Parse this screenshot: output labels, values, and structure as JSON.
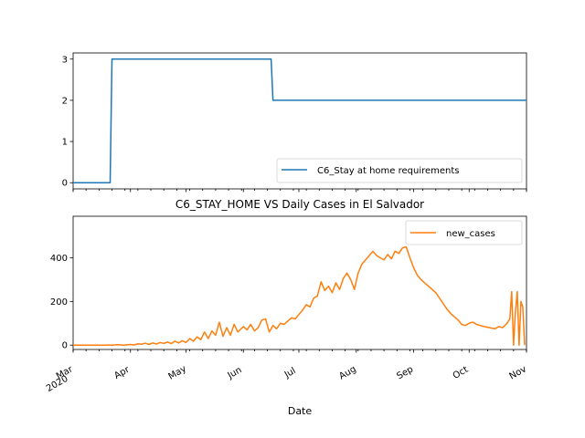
{
  "chart_data": [
    {
      "type": "line",
      "title": "",
      "xlabel": "",
      "ylabel": "",
      "x_range": [
        "2020-03-01",
        "2020-11-01"
      ],
      "ylim": [
        -0.15,
        3.15
      ],
      "yticks": [
        "0",
        "1",
        "2",
        "3"
      ],
      "x_tick_labels_shown": false,
      "legend_position": "lower-right",
      "grid": false,
      "series": [
        {
          "name": "C6_Stay at home requirements",
          "color": "#1f77b4",
          "points": [
            [
              "2020-03-01",
              0
            ],
            [
              "2020-03-21",
              0
            ],
            [
              "2020-03-22",
              3
            ],
            [
              "2020-06-16",
              3
            ],
            [
              "2020-06-17",
              2
            ],
            [
              "2020-11-01",
              2
            ]
          ]
        }
      ]
    },
    {
      "type": "line",
      "title": "C6_STAY_HOME VS Daily Cases in El Salvador",
      "xlabel": "Date",
      "ylabel": "",
      "x_range": [
        "2020-03-01",
        "2020-11-01"
      ],
      "ylim": [
        -20,
        590
      ],
      "yticks": [
        "0",
        "200",
        "400"
      ],
      "x_tick_labels": [
        {
          "date": "2020-03-01",
          "label": "Mar\n2020"
        },
        {
          "date": "2020-04-01",
          "label": "Apr"
        },
        {
          "date": "2020-05-01",
          "label": "May"
        },
        {
          "date": "2020-06-01",
          "label": "Jun"
        },
        {
          "date": "2020-07-01",
          "label": "Jul"
        },
        {
          "date": "2020-08-01",
          "label": "Aug"
        },
        {
          "date": "2020-09-01",
          "label": "Sep"
        },
        {
          "date": "2020-10-01",
          "label": "Oct"
        },
        {
          "date": "2020-11-01",
          "label": "Nov"
        }
      ],
      "legend_position": "upper-right",
      "grid": false,
      "series": [
        {
          "name": "new_cases",
          "color": "#ff7f0e",
          "points": [
            [
              "2020-03-01",
              0
            ],
            [
              "2020-03-19",
              0
            ],
            [
              "2020-03-20",
              1
            ],
            [
              "2020-03-22",
              0
            ],
            [
              "2020-03-25",
              2
            ],
            [
              "2020-03-28",
              0
            ],
            [
              "2020-04-01",
              3
            ],
            [
              "2020-04-03",
              1
            ],
            [
              "2020-04-05",
              6
            ],
            [
              "2020-04-07",
              4
            ],
            [
              "2020-04-09",
              9
            ],
            [
              "2020-04-11",
              3
            ],
            [
              "2020-04-13",
              10
            ],
            [
              "2020-04-15",
              5
            ],
            [
              "2020-04-17",
              12
            ],
            [
              "2020-04-19",
              8
            ],
            [
              "2020-04-21",
              14
            ],
            [
              "2020-04-23",
              7
            ],
            [
              "2020-04-25",
              18
            ],
            [
              "2020-04-27",
              10
            ],
            [
              "2020-04-29",
              20
            ],
            [
              "2020-05-01",
              12
            ],
            [
              "2020-05-03",
              30
            ],
            [
              "2020-05-05",
              18
            ],
            [
              "2020-05-07",
              38
            ],
            [
              "2020-05-09",
              25
            ],
            [
              "2020-05-11",
              60
            ],
            [
              "2020-05-13",
              30
            ],
            [
              "2020-05-15",
              65
            ],
            [
              "2020-05-17",
              45
            ],
            [
              "2020-05-19",
              105
            ],
            [
              "2020-05-21",
              40
            ],
            [
              "2020-05-23",
              80
            ],
            [
              "2020-05-25",
              45
            ],
            [
              "2020-05-27",
              95
            ],
            [
              "2020-05-29",
              60
            ],
            [
              "2020-06-01",
              85
            ],
            [
              "2020-06-03",
              70
            ],
            [
              "2020-06-05",
              95
            ],
            [
              "2020-06-07",
              65
            ],
            [
              "2020-06-09",
              80
            ],
            [
              "2020-06-11",
              115
            ],
            [
              "2020-06-13",
              120
            ],
            [
              "2020-06-15",
              60
            ],
            [
              "2020-06-17",
              90
            ],
            [
              "2020-06-19",
              75
            ],
            [
              "2020-06-21",
              100
            ],
            [
              "2020-06-23",
              95
            ],
            [
              "2020-06-25",
              110
            ],
            [
              "2020-06-27",
              125
            ],
            [
              "2020-06-29",
              120
            ],
            [
              "2020-07-01",
              140
            ],
            [
              "2020-07-03",
              160
            ],
            [
              "2020-07-05",
              185
            ],
            [
              "2020-07-07",
              175
            ],
            [
              "2020-07-09",
              215
            ],
            [
              "2020-07-11",
              225
            ],
            [
              "2020-07-13",
              290
            ],
            [
              "2020-07-15",
              250
            ],
            [
              "2020-07-17",
              270
            ],
            [
              "2020-07-19",
              240
            ],
            [
              "2020-07-21",
              285
            ],
            [
              "2020-07-23",
              255
            ],
            [
              "2020-07-25",
              305
            ],
            [
              "2020-07-27",
              330
            ],
            [
              "2020-07-29",
              300
            ],
            [
              "2020-07-31",
              255
            ],
            [
              "2020-08-02",
              330
            ],
            [
              "2020-08-04",
              370
            ],
            [
              "2020-08-06",
              390
            ],
            [
              "2020-08-08",
              410
            ],
            [
              "2020-08-10",
              430
            ],
            [
              "2020-08-12",
              410
            ],
            [
              "2020-08-14",
              400
            ],
            [
              "2020-08-16",
              390
            ],
            [
              "2020-08-18",
              415
            ],
            [
              "2020-08-20",
              395
            ],
            [
              "2020-08-22",
              430
            ],
            [
              "2020-08-24",
              420
            ],
            [
              "2020-08-26",
              445
            ],
            [
              "2020-08-28",
              450
            ],
            [
              "2020-08-30",
              400
            ],
            [
              "2020-09-01",
              355
            ],
            [
              "2020-09-03",
              320
            ],
            [
              "2020-09-05",
              300
            ],
            [
              "2020-09-07",
              285
            ],
            [
              "2020-09-09",
              270
            ],
            [
              "2020-09-11",
              255
            ],
            [
              "2020-09-13",
              240
            ],
            [
              "2020-09-15",
              215
            ],
            [
              "2020-09-17",
              190
            ],
            [
              "2020-09-19",
              165
            ],
            [
              "2020-09-21",
              145
            ],
            [
              "2020-09-23",
              130
            ],
            [
              "2020-09-25",
              115
            ],
            [
              "2020-09-27",
              95
            ],
            [
              "2020-09-29",
              90
            ],
            [
              "2020-10-01",
              100
            ],
            [
              "2020-10-03",
              105
            ],
            [
              "2020-10-05",
              95
            ],
            [
              "2020-10-07",
              90
            ],
            [
              "2020-10-09",
              85
            ],
            [
              "2020-10-11",
              82
            ],
            [
              "2020-10-13",
              78
            ],
            [
              "2020-10-15",
              75
            ],
            [
              "2020-10-17",
              85
            ],
            [
              "2020-10-19",
              80
            ],
            [
              "2020-10-21",
              95
            ],
            [
              "2020-10-23",
              120
            ],
            [
              "2020-10-24",
              245
            ],
            [
              "2020-10-25",
              0
            ],
            [
              "2020-10-26",
              150
            ],
            [
              "2020-10-27",
              245
            ],
            [
              "2020-10-28",
              0
            ],
            [
              "2020-10-29",
              200
            ],
            [
              "2020-10-30",
              175
            ],
            [
              "2020-10-31",
              0
            ]
          ]
        }
      ]
    }
  ]
}
